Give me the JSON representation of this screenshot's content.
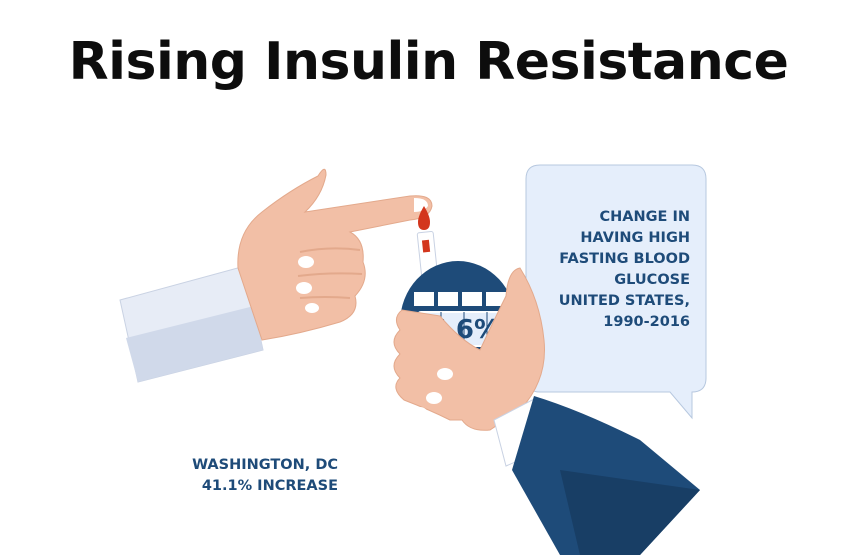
{
  "title": "Rising Insulin Resistance",
  "callout": {
    "lines": [
      "CHANGE IN",
      "HAVING HIGH",
      "FASTING BLOOD",
      "GLUCOSE",
      "UNITED STATES,",
      "1990-2016"
    ]
  },
  "meter": {
    "reading": "7.6%"
  },
  "location": {
    "name": "WASHINGTON, DC",
    "change": "41.1% INCREASE"
  },
  "colors": {
    "navy": "#1e4b79",
    "skin": "#f2bfa6",
    "bubble": "#e5eefb",
    "blood": "#d3361d"
  },
  "icons": [
    "pointing-hand-icon",
    "blood-drop-icon",
    "glucose-meter-icon",
    "holding-hand-icon",
    "speech-bubble-icon"
  ]
}
